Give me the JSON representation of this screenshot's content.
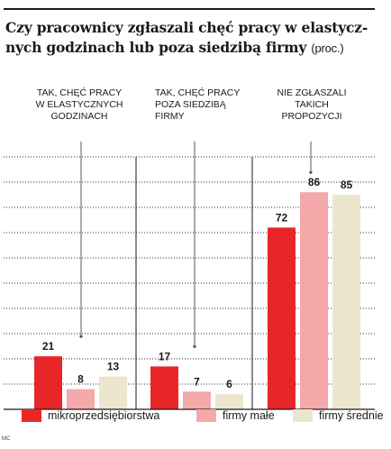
{
  "title_line1": "Czy pracownicy zgłaszali chęć pracy w elastycz-",
  "title_line2": "nych godzinach lub poza siedzibą firmy",
  "unit": "(proc.)",
  "credit": "MC",
  "colors": {
    "mikro": "#e8262a",
    "male": "#f4a8aa",
    "srednie": "#ede6cf",
    "grid": "#333333",
    "axis": "#1a1a1a"
  },
  "chart_data": {
    "type": "bar",
    "title": "Czy pracownicy zgłaszali chęć pracy w elastycznych godzinach lub poza siedzibą firmy",
    "unit": "(proc.)",
    "categories": [
      "TAK, CHĘĆ PRACY W ELASTYCZNYCH GODZINACH",
      "TAK, CHĘĆ PRACY POZA SIEDZIBĄ FIRMY",
      "NIE ZGŁASZALI TAKICH PROPOZYCJI"
    ],
    "category_lines": [
      [
        "TAK, CHĘĆ PRACY",
        "W ELASTYCZNYCH",
        "GODZINACH"
      ],
      [
        "TAK, CHĘĆ PRACY",
        "POZA SIEDZIBĄ",
        "FIRMY"
      ],
      [
        "NIE ZGŁASZALI",
        "TAKICH",
        "PROPOZYCJI"
      ]
    ],
    "series": [
      {
        "name": "mikroprzedsiębiorstwa",
        "values": [
          21,
          17,
          72
        ]
      },
      {
        "name": "firmy małe",
        "values": [
          8,
          7,
          86
        ]
      },
      {
        "name": "firmy średnie",
        "values": [
          13,
          6,
          85
        ]
      }
    ],
    "ylim": [
      0,
      100
    ],
    "grid": true,
    "legend": "bottom",
    "xlabel": "",
    "ylabel": ""
  }
}
